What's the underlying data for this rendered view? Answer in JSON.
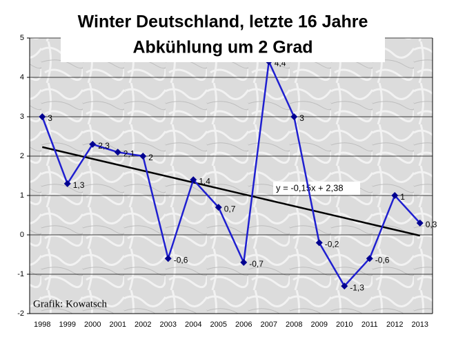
{
  "chart_data": {
    "type": "line",
    "title": "Winter Deutschland, letzte 16 Jahre",
    "subtitle": "Abkühlung um 2 Grad",
    "source": "Grafik: Kowatsch",
    "categories": [
      "1998",
      "1999",
      "2000",
      "2001",
      "2002",
      "2003",
      "2004",
      "2005",
      "2006",
      "2007",
      "2008",
      "2009",
      "2010",
      "2011",
      "2012",
      "2013"
    ],
    "values": [
      3,
      1.3,
      2.3,
      2.1,
      2,
      -0.6,
      1.4,
      0.7,
      -0.7,
      4.4,
      3,
      -0.2,
      -1.3,
      -0.6,
      1,
      0.3
    ],
    "value_labels": [
      "3",
      "1,3",
      "2,3",
      "2,1",
      "2",
      "-0,6",
      "1,4",
      "0,7",
      "-0,7",
      "4,4",
      "3",
      "-0,2",
      "-1,3",
      "-0,6",
      "1",
      "0,3"
    ],
    "color": "#1f1fd0",
    "marker_color": "#000090",
    "trendline": {
      "label": "y = -0,15x + 2,38",
      "slope": -0.15,
      "intercept": 2.38,
      "color": "#000000"
    },
    "ylim": [
      -2,
      5
    ],
    "yticks": [
      -2,
      -1,
      0,
      1,
      2,
      3,
      4,
      5
    ],
    "grid": true
  }
}
